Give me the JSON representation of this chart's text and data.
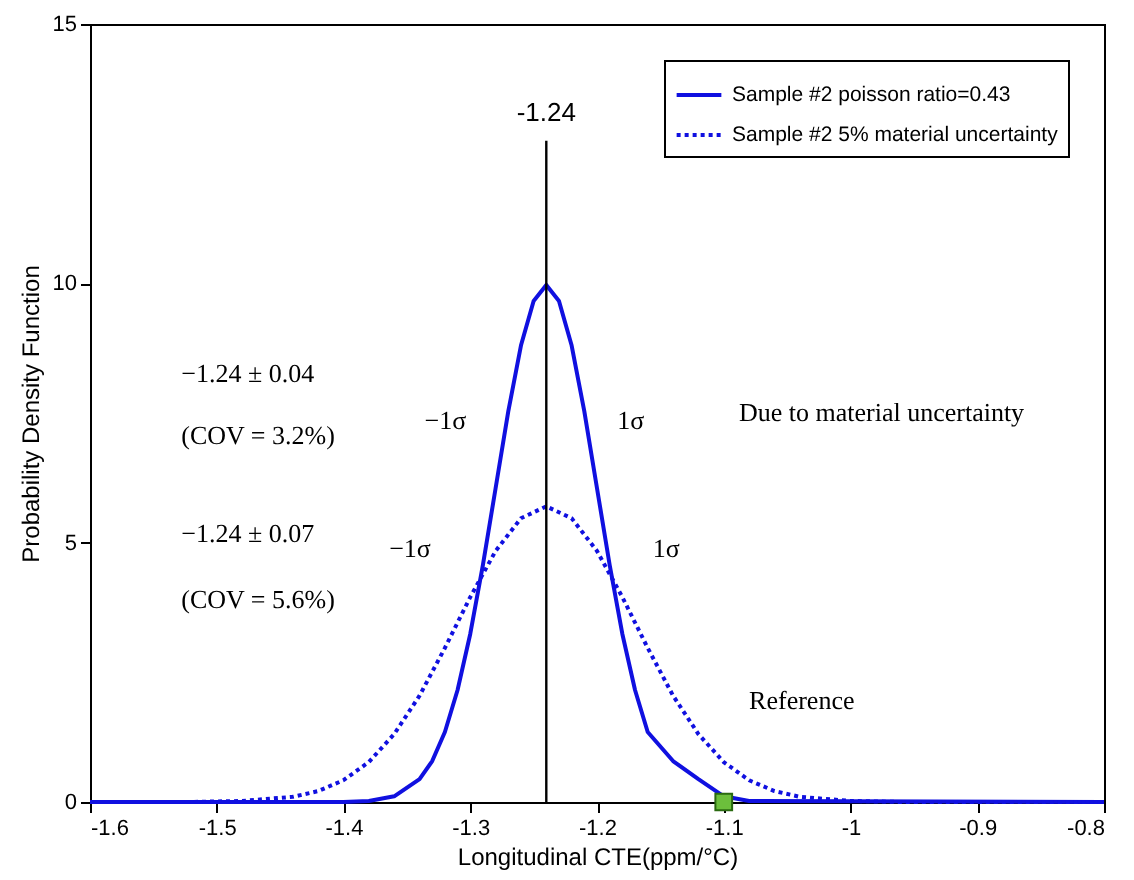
{
  "chart_data": {
    "type": "line",
    "xlabel": "Longitudinal CTE(ppm/°C)",
    "ylabel": "Probability Density Function",
    "xlim": [
      -1.6,
      -0.8
    ],
    "xticks": [
      -1.6,
      -1.5,
      -1.4,
      -1.3,
      -1.2,
      -1.1,
      -1,
      -0.9,
      -0.8
    ],
    "ylim": [
      0,
      15
    ],
    "yticks": [
      0,
      5,
      10,
      15
    ],
    "grid": false,
    "legend": "top right",
    "series": [
      {
        "name": "Sample #2 poisson ratio=0.43",
        "color": "#1010e0",
        "line_style": "solid",
        "x": [
          -1.6,
          -1.4,
          -1.38,
          -1.36,
          -1.34,
          -1.33,
          -1.32,
          -1.31,
          -1.3,
          -1.29,
          -1.28,
          -1.27,
          -1.26,
          -1.25,
          -1.24,
          -1.23,
          -1.22,
          -1.21,
          -1.2,
          -1.19,
          -1.18,
          -1.17,
          -1.16,
          -1.14,
          -1.12,
          -1.1,
          -1.08,
          -0.8
        ],
        "values": [
          0,
          0,
          0.02,
          0.11,
          0.44,
          0.79,
          1.35,
          2.16,
          3.24,
          4.57,
          6.05,
          7.53,
          8.8,
          9.66,
          9.97,
          9.66,
          8.8,
          7.53,
          6.05,
          4.57,
          3.24,
          2.16,
          1.35,
          0.79,
          0.44,
          0.11,
          0.02,
          0
        ]
      },
      {
        "name": "Sample #2 5% material uncertainty",
        "color": "#1010e0",
        "line_style": "dotted",
        "x": [
          -1.6,
          -1.52,
          -1.48,
          -1.44,
          -1.42,
          -1.4,
          -1.38,
          -1.36,
          -1.34,
          -1.32,
          -1.3,
          -1.28,
          -1.26,
          -1.24,
          -1.22,
          -1.2,
          -1.18,
          -1.16,
          -1.14,
          -1.12,
          -1.1,
          -1.08,
          -1.06,
          -1.04,
          -1.0,
          -0.96,
          -0.8
        ],
        "values": [
          0,
          0,
          0.02,
          0.1,
          0.21,
          0.42,
          0.77,
          1.31,
          2.05,
          2.97,
          3.95,
          4.84,
          5.47,
          5.7,
          5.47,
          4.84,
          3.95,
          2.97,
          2.05,
          1.31,
          0.77,
          0.42,
          0.21,
          0.1,
          0.02,
          0,
          0
        ]
      },
      {
        "type": "scatter",
        "marker": "square",
        "color": "#6cbf3c",
        "x": [
          -1.1
        ],
        "values": [
          0
        ]
      }
    ],
    "ref_lines": [
      {
        "axis": "x",
        "value": -1.24,
        "label": "-1.24",
        "color": "#000000"
      }
    ],
    "annotations": [
      "−1.24 ± 0.04",
      "(COV = 3.2%)",
      "−1.24 ± 0.07",
      "(COV = 5.6%)",
      "−1σ",
      "1σ",
      "−1σ",
      "1σ",
      "Due to material uncertainty",
      "Reference"
    ]
  }
}
